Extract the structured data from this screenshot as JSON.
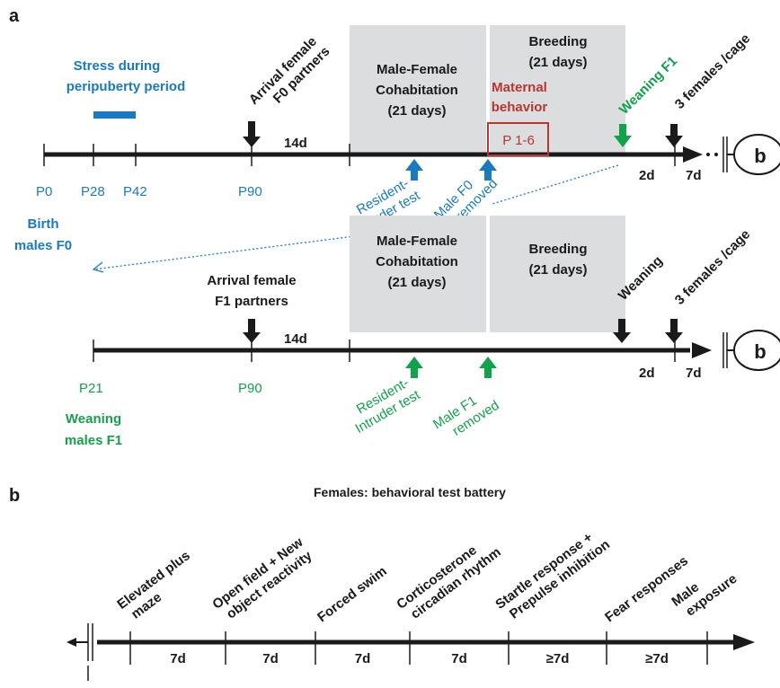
{
  "colors": {
    "black": "#1a1a1a",
    "blue": "#1a7ac0",
    "green": "#12a24a",
    "red": "#b93532",
    "box": "#dcdddf"
  },
  "panel_a": {
    "label": "a",
    "stress_label_1": "Stress  during",
    "stress_label_2": "peripuberty period",
    "ticks": {
      "p0": "P0",
      "p28": "P28",
      "p42": "P42",
      "p90": "P90"
    },
    "birth_1": "Birth",
    "birth_2": "males F0",
    "arrival_1": "Arrival female",
    "arrival_2": "F0  partners",
    "interval_14d": "14d",
    "cohab_1": "Male-Female",
    "cohab_2": "Cohabitation",
    "cohab_3": "(21 days)",
    "breeding_1": "Breeding",
    "breeding_2": "(21 days)",
    "maternal_1": "Maternal",
    "maternal_2": "behavior",
    "maternal_box": "P 1-6",
    "weaning_f1": "Weaning F1",
    "females_cage": "3 females /cage",
    "resident_1": "Resident-",
    "resident_2": "Intruder test",
    "male_removed_1": "Male F0",
    "male_removed_2": "removed",
    "interval_2d": "2d",
    "interval_7d": "7d",
    "link_b": "b"
  },
  "panel_a2": {
    "arrival_1": "Arrival female",
    "arrival_2": "F1 partners",
    "interval_14d": "14d",
    "cohab_1": "Male-Female",
    "cohab_2": "Cohabitation",
    "cohab_3": "(21 days)",
    "breeding_1": "Breeding",
    "breeding_2": "(21 days)",
    "weaning": "Weaning",
    "females_cage": "3 females /cage",
    "p21": "P21",
    "p90": "P90",
    "weaning_males_1": "Weaning",
    "weaning_males_2": "males F1",
    "resident_1": "Resident-",
    "resident_2": "Intruder test",
    "male_removed_1": "Male  F1",
    "male_removed_2": "removed",
    "interval_2d": "2d",
    "interval_7d": "7d",
    "link_b": "b"
  },
  "panel_b": {
    "label": "b",
    "title": "Females: behavioral test battery",
    "tests": [
      [
        "Elevated plus",
        "maze"
      ],
      [
        "Open field + New",
        "object reactivity"
      ],
      [
        "Forced swim"
      ],
      [
        "Corticosterone",
        "circadian rhythm"
      ],
      [
        "Startle response +",
        "Prepulse inhibition"
      ],
      [
        "Fear responses"
      ],
      [
        "Male",
        "exposure"
      ]
    ],
    "intervals": [
      "7d",
      "7d",
      "7d",
      "7d",
      "≥7d",
      "≥7d"
    ]
  }
}
